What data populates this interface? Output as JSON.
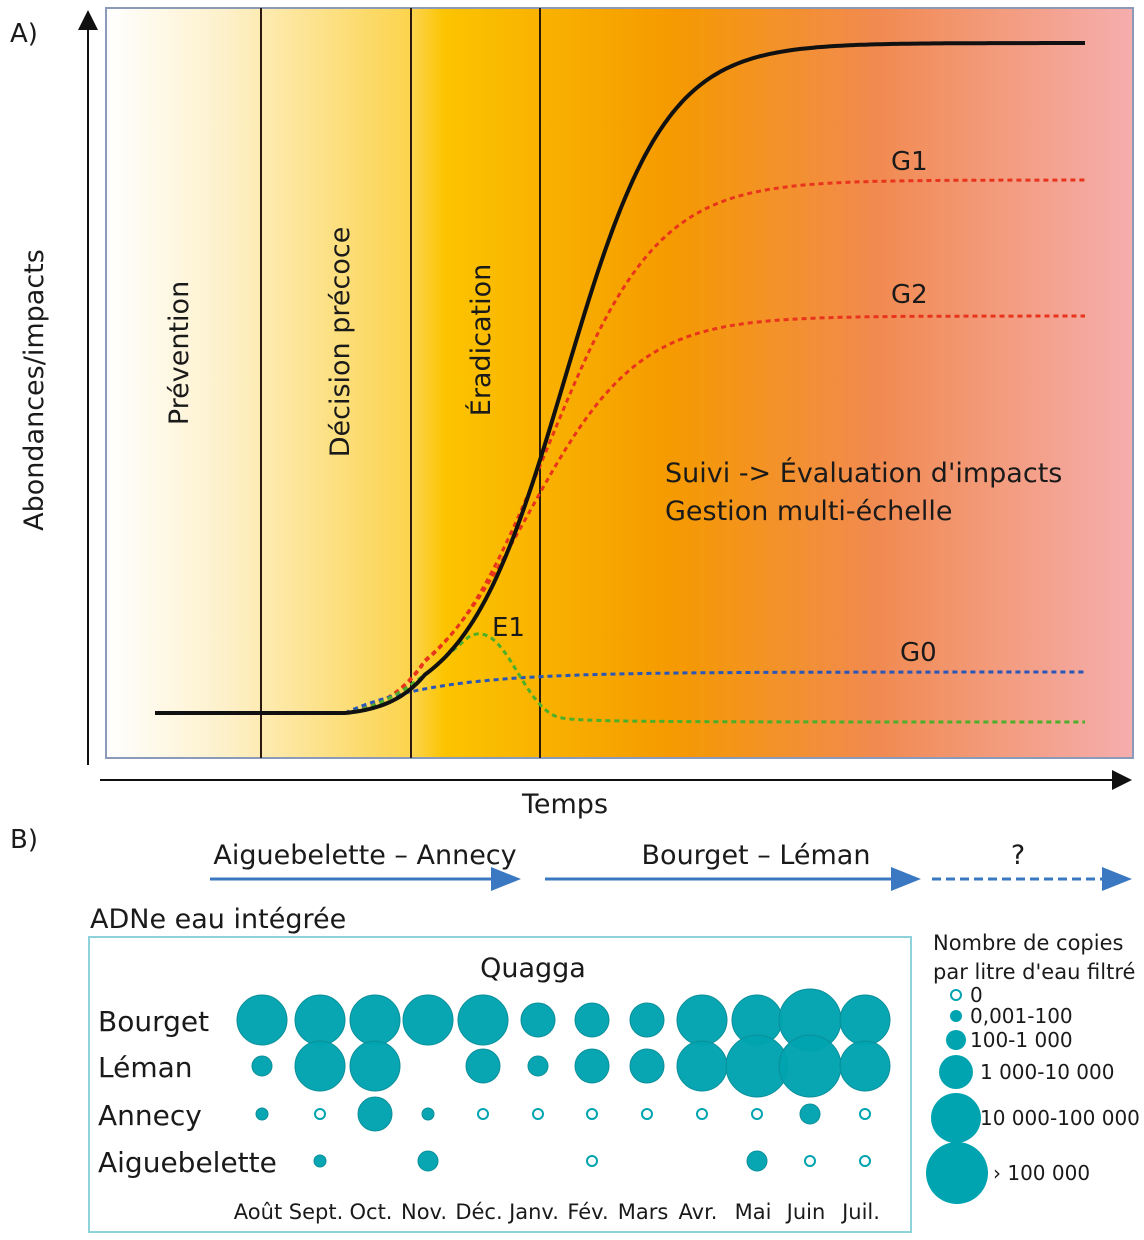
{
  "panel_a": {
    "label": "A)",
    "y_axis_label": "Abondances/impacts",
    "x_axis_label": "Temps",
    "phases": [
      "Prévention",
      "Décision précoce",
      "Éradication"
    ],
    "annotation_line1": "Suivi -> Évaluation d'impacts",
    "annotation_line2": "Gestion multi-échelle",
    "curve_labels": {
      "g1": "G1",
      "g2": "G2",
      "g0": "G0",
      "e1": "E1"
    },
    "colors": {
      "main": "#111111",
      "g1": "#e8341c",
      "g2": "#e8341c",
      "g0": "#2a56b8",
      "e1": "#4caf2a"
    }
  },
  "panel_b": {
    "label": "B)",
    "periods": [
      "Aiguebelette – Annecy",
      "Bourget – Léman",
      "?"
    ],
    "subtitle": "ADNe eau intégrée",
    "arrow_color": "#3a78c2"
  },
  "chart_data": {
    "type": "bubble",
    "title": "Quagga",
    "months": [
      "Août",
      "Sept.",
      "Oct.",
      "Nov.",
      "Déc.",
      "Janv.",
      "Fév.",
      "Mars",
      "Avr.",
      "Mai",
      "Juin",
      "Juil."
    ],
    "rows": [
      {
        "name": "Bourget",
        "classes": [
          4,
          4,
          4,
          4,
          4,
          3,
          3,
          3,
          4,
          4,
          5,
          4
        ]
      },
      {
        "name": "Léman",
        "classes": [
          2,
          4,
          4,
          null,
          3,
          2,
          3,
          3,
          4,
          5,
          5,
          4
        ]
      },
      {
        "name": "Annecy",
        "classes": [
          1,
          0,
          3,
          1,
          0,
          0,
          0,
          0,
          0,
          0,
          2,
          0
        ]
      },
      {
        "name": "Aiguebelette",
        "classes": [
          null,
          1,
          null,
          2,
          null,
          null,
          0,
          null,
          null,
          2,
          0,
          0
        ]
      }
    ],
    "legend_title_line1": "Nombre de copies",
    "legend_title_line2": "par litre d'eau filtré",
    "legend": [
      "0",
      "0,001-100",
      "100-1 000",
      "1 000-10 000",
      "10 000-100 000",
      "› 100 000"
    ],
    "bubble_color": "#00a3b0"
  }
}
